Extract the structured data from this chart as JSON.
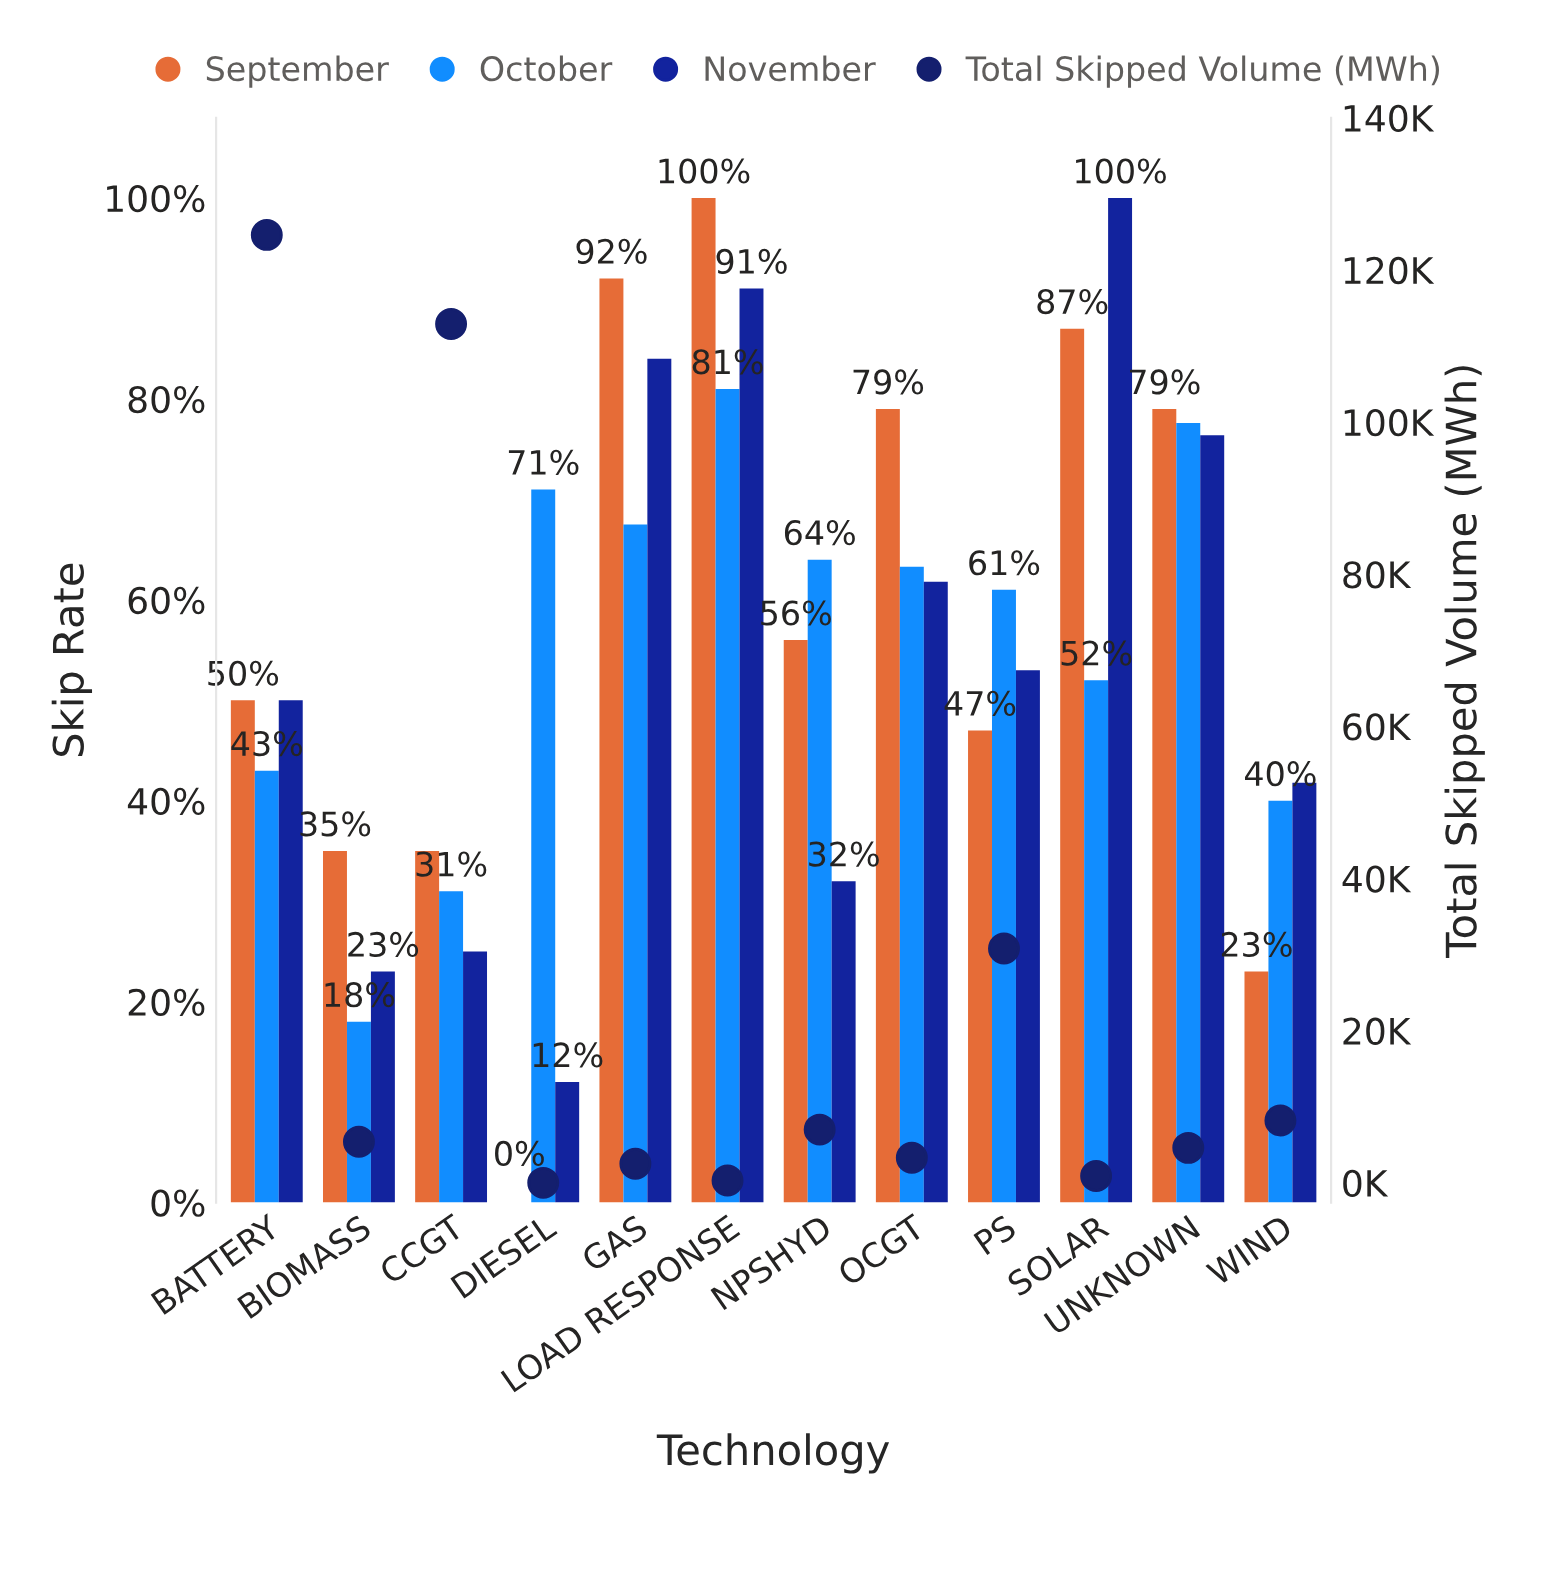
{
  "chart_data": {
    "type": "bar",
    "categories": [
      "BATTERY",
      "BIOMASS",
      "CCGT",
      "DIESEL",
      "GAS",
      "LOAD RESPONSE",
      "NPSHYD",
      "OCGT",
      "PS",
      "SOLAR",
      "UNKNOWN",
      "WIND"
    ],
    "xlabel": "Technology",
    "ylabel": "Skip Rate",
    "y2label": "Total Skipped Volume (MWh)",
    "ylim": [
      0,
      108
    ],
    "yticks": [
      {
        "value": 0,
        "label": "0%"
      },
      {
        "value": 20,
        "label": "20%"
      },
      {
        "value": 40,
        "label": "40%"
      },
      {
        "value": 60,
        "label": "60%"
      },
      {
        "value": 80,
        "label": "80%"
      },
      {
        "value": 100,
        "label": "100%"
      }
    ],
    "y2lim": [
      -2600,
      140000
    ],
    "y2ticks": [
      {
        "value": 0,
        "label": "0K"
      },
      {
        "value": 20000,
        "label": "20K"
      },
      {
        "value": 40000,
        "label": "40K"
      },
      {
        "value": 60000,
        "label": "60K"
      },
      {
        "value": 80000,
        "label": "80K"
      },
      {
        "value": 100000,
        "label": "100K"
      },
      {
        "value": 120000,
        "label": "120K"
      },
      {
        "value": 140000,
        "label": "140K"
      }
    ],
    "legend": "top left",
    "grid": false,
    "series": [
      {
        "name": "September",
        "color": "#e66c37",
        "values": [
          50,
          35,
          35,
          0,
          92,
          100,
          56,
          79,
          47,
          87,
          79,
          23
        ],
        "value_labels": [
          "50%",
          "35%",
          null,
          "0%",
          "92%",
          "100%",
          "56%",
          "79%",
          "47%",
          "87%",
          "79%",
          "23%"
        ]
      },
      {
        "name": "October",
        "color": "#118dff",
        "values": [
          43,
          18,
          31,
          71,
          67.5,
          81,
          64,
          63.3,
          61,
          52,
          77.6,
          40
        ],
        "value_labels": [
          "43%",
          "18%",
          "31%",
          "71%",
          null,
          "81%",
          "64%",
          null,
          "61%",
          "52%",
          null,
          "40%"
        ]
      },
      {
        "name": "November",
        "color": "#12239e",
        "values": [
          50,
          23,
          25,
          12,
          84,
          91,
          32,
          61.8,
          53,
          100,
          76.4,
          41.8
        ],
        "value_labels": [
          null,
          "23%",
          null,
          "12%",
          null,
          "91%",
          "32%",
          null,
          null,
          "100%",
          null,
          null
        ]
      },
      {
        "name": "Total Skipped Volume (MWh)",
        "type": "scatter",
        "axis": "y2",
        "marker": "circle",
        "color": "#141f6e",
        "values": [
          124600,
          5400,
          112900,
          0,
          2500,
          300,
          7000,
          3300,
          30800,
          900,
          4600,
          8200
        ]
      }
    ]
  }
}
